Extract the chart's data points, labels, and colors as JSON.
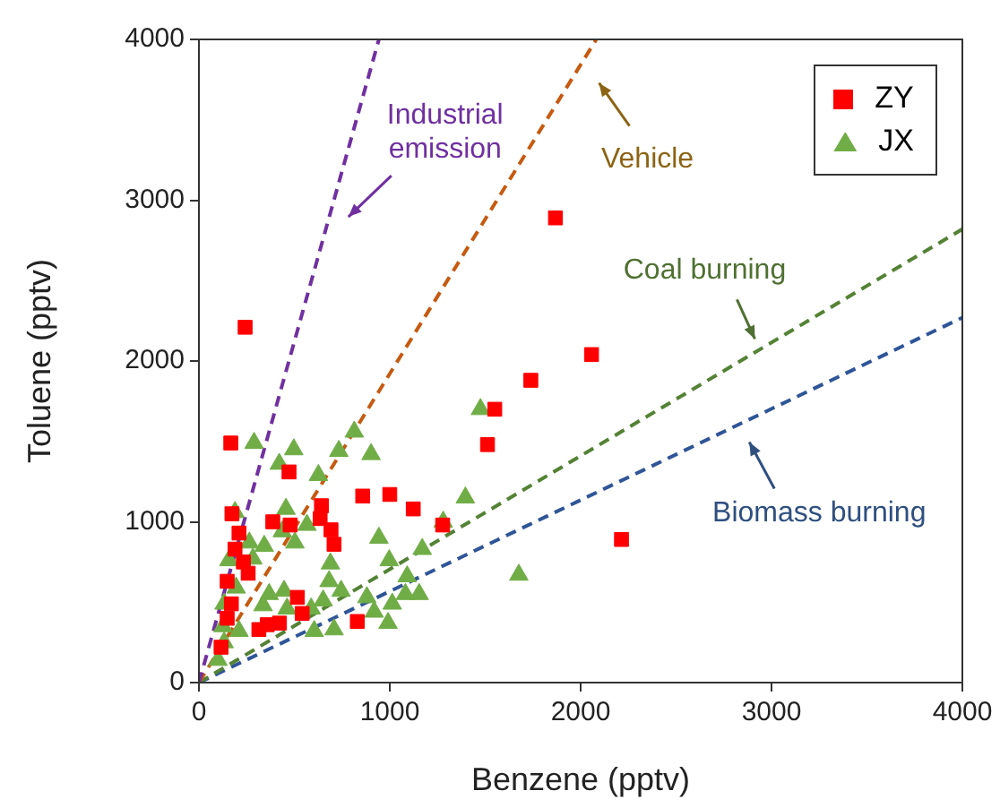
{
  "chart_data": {
    "type": "scatter",
    "xlabel": "Benzene (pptv)",
    "ylabel": "Toluene (pptv)",
    "xlim": [
      0,
      4000
    ],
    "xticks": [
      0,
      1000,
      2000,
      3000,
      4000
    ],
    "ylim": [
      0,
      4000
    ],
    "yticks": [
      0,
      1000,
      2000,
      3000,
      4000
    ],
    "grid": false,
    "legend": "top right",
    "series": [
      {
        "name": "ZY",
        "color": "#ff0000",
        "marker": "square",
        "x": [
          242,
          167,
          472,
          1550,
          1512,
          858,
          1000,
          1123,
          1277,
          387,
          478,
          642,
          635,
          692,
          708,
          173,
          210,
          189,
          233,
          148,
          258,
          170,
          148,
          116,
          516,
          541,
          422,
          358,
          314,
          830,
          1868,
          2057,
          1739,
          2214
        ],
        "values": [
          2210,
          1490,
          1310,
          1700,
          1480,
          1160,
          1170,
          1080,
          980,
          1000,
          980,
          1100,
          1020,
          950,
          860,
          1050,
          930,
          830,
          750,
          630,
          680,
          490,
          400,
          220,
          530,
          430,
          370,
          360,
          330,
          380,
          2890,
          2040,
          1880,
          890
        ]
      },
      {
        "name": "JX",
        "color": "#70ad47",
        "marker": "triangle",
        "x": [
          1475,
          289,
          497,
          421,
          814,
          733,
          902,
          626,
          189,
          456,
          566,
          437,
          503,
          264,
          342,
          157,
          283,
          689,
          943,
          997,
          1170,
          1396,
          1280,
          1091,
          1082,
          1154,
          1013,
          880,
          918,
          991,
          682,
          745,
          651,
          588,
          446,
          368,
          336,
          462,
          604,
          708,
          195,
          132,
          126,
          210,
          132,
          100,
          1676
        ],
        "values": [
          1700,
          1490,
          1450,
          1360,
          1560,
          1440,
          1420,
          1290,
          1060,
          1080,
          980,
          940,
          870,
          870,
          850,
          760,
          770,
          740,
          900,
          760,
          830,
          1150,
          1000,
          660,
          550,
          550,
          490,
          530,
          440,
          370,
          630,
          570,
          510,
          460,
          570,
          550,
          480,
          460,
          320,
          330,
          590,
          490,
          350,
          320,
          250,
          140,
          670
        ]
      },
      {
        "type": "line",
        "name": "Industrial emission",
        "color": "#7030a0",
        "line_style": "dashed",
        "marker": "none",
        "x": [
          0,
          943
        ],
        "values": [
          0,
          4000
        ]
      },
      {
        "type": "line",
        "name": "Vehicle",
        "color": "#c55a11",
        "line_style": "dashed",
        "marker": "none",
        "x": [
          0,
          2082
        ],
        "values": [
          0,
          4000
        ]
      },
      {
        "type": "line",
        "name": "Coal burning",
        "color": "#548235",
        "line_style": "dashed",
        "marker": "none",
        "x": [
          0,
          4000
        ],
        "values": [
          0,
          2820
        ]
      },
      {
        "type": "line",
        "name": "Biomass burning",
        "color": "#2f5597",
        "line_style": "dashed",
        "marker": "none",
        "x": [
          0,
          4000
        ],
        "values": [
          0,
          2270
        ]
      }
    ]
  }
}
